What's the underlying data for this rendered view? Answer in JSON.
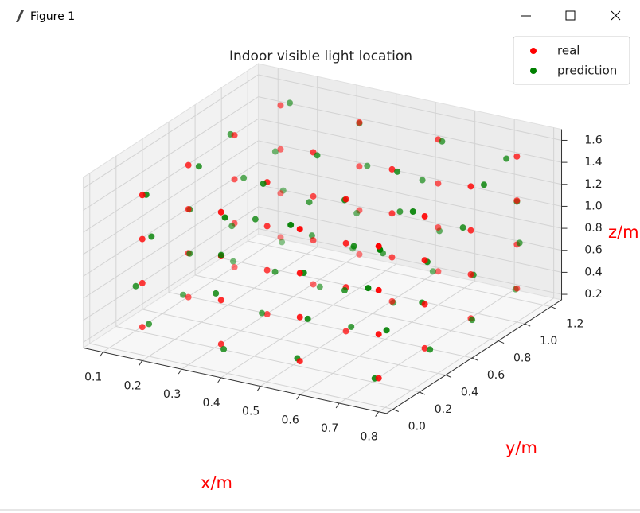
{
  "window": {
    "title": "Figure 1"
  },
  "chart_data": {
    "type": "scatter3d",
    "title": "Indoor visible light location",
    "x_label": "x/m",
    "y_label": "y/m",
    "z_label": "z/m",
    "xlim": [
      0.05,
      0.82
    ],
    "ylim": [
      -0.05,
      1.28
    ],
    "zlim": [
      0.15,
      1.7
    ],
    "xticks": [
      0.1,
      0.2,
      0.3,
      0.4,
      0.5,
      0.6,
      0.7,
      0.8
    ],
    "yticks": [
      {
        "value": 0,
        "label": "0.0"
      },
      0.2,
      0.4,
      0.6,
      0.8,
      {
        "value": 1,
        "label": "1.0"
      },
      1.2
    ],
    "zticks": [
      0.2,
      0.4,
      0.6,
      0.8,
      {
        "value": 1,
        "label": "1.0"
      },
      1.2,
      1.4,
      1.6
    ],
    "grid": true,
    "legend": "upper right",
    "series": [
      {
        "name": "real",
        "color": "#ff0000",
        "x": [
          0.15,
          0.15,
          0.15,
          0.15,
          0.15,
          0.15,
          0.15,
          0.15,
          0.15,
          0.15,
          0.15,
          0.15,
          0.15,
          0.15,
          0.15,
          0.15,
          0.35,
          0.35,
          0.35,
          0.35,
          0.35,
          0.35,
          0.35,
          0.35,
          0.35,
          0.35,
          0.35,
          0.35,
          0.35,
          0.35,
          0.35,
          0.35,
          0.55,
          0.55,
          0.55,
          0.55,
          0.55,
          0.55,
          0.55,
          0.55,
          0.55,
          0.55,
          0.55,
          0.55,
          0.55,
          0.55,
          0.55,
          0.55,
          0.75,
          0.75,
          0.75,
          0.75,
          0.75,
          0.75,
          0.75,
          0.75,
          0.75,
          0.75,
          0.75,
          0.75,
          0.75,
          0.75,
          0.75,
          0.75
        ],
        "y": [
          0.1,
          0.1,
          0.1,
          0.1,
          0.45,
          0.45,
          0.45,
          0.45,
          0.8,
          0.8,
          0.8,
          0.8,
          1.15,
          1.15,
          1.15,
          1.15,
          0.1,
          0.1,
          0.1,
          0.1,
          0.45,
          0.45,
          0.45,
          0.45,
          0.8,
          0.8,
          0.8,
          0.8,
          1.15,
          1.15,
          1.15,
          1.15,
          0.1,
          0.1,
          0.1,
          0.1,
          0.45,
          0.45,
          0.45,
          0.45,
          0.8,
          0.8,
          0.8,
          0.8,
          1.15,
          1.15,
          1.15,
          1.15,
          0.1,
          0.1,
          0.1,
          0.1,
          0.45,
          0.45,
          0.45,
          0.45,
          0.8,
          0.8,
          0.8,
          0.8,
          1.15,
          1.15,
          1.15,
          1.15
        ],
        "z": [
          0.3,
          0.7,
          1.1,
          1.5,
          0.3,
          0.7,
          1.1,
          1.5,
          0.3,
          0.7,
          1.1,
          1.5,
          0.3,
          0.7,
          1.1,
          1.5,
          0.3,
          0.7,
          1.1,
          1.5,
          0.3,
          0.7,
          1.1,
          1.5,
          0.3,
          0.7,
          1.1,
          1.5,
          0.3,
          0.7,
          1.1,
          1.5,
          0.3,
          0.7,
          1.1,
          1.5,
          0.3,
          0.7,
          1.1,
          1.5,
          0.3,
          0.7,
          1.1,
          1.5,
          0.3,
          0.7,
          1.1,
          1.5,
          0.3,
          0.7,
          1.1,
          1.5,
          0.3,
          0.7,
          1.1,
          1.5,
          0.3,
          0.7,
          1.1,
          1.5,
          0.3,
          0.7,
          1.1,
          1.5
        ]
      },
      {
        "name": "prediction",
        "color": "#008000",
        "x": [
          0.16,
          0.14,
          0.17,
          0.15,
          0.13,
          0.16,
          0.15,
          0.18,
          0.14,
          0.15,
          0.17,
          0.13,
          0.16,
          0.15,
          0.14,
          0.17,
          0.36,
          0.33,
          0.35,
          0.37,
          0.34,
          0.36,
          0.32,
          0.35,
          0.37,
          0.34,
          0.35,
          0.36,
          0.33,
          0.35,
          0.37,
          0.34,
          0.54,
          0.57,
          0.55,
          0.53,
          0.56,
          0.55,
          0.58,
          0.54,
          0.55,
          0.53,
          0.56,
          0.57,
          0.54,
          0.55,
          0.52,
          0.56,
          0.74,
          0.76,
          0.73,
          0.75,
          0.77,
          0.74,
          0.75,
          0.72,
          0.76,
          0.75,
          0.73,
          0.77,
          0.74,
          0.76,
          0.75,
          0.73
        ],
        "y": [
          0.12,
          0.08,
          0.11,
          0.13,
          0.47,
          0.43,
          0.46,
          0.44,
          0.82,
          0.78,
          0.81,
          0.83,
          1.13,
          1.17,
          1.14,
          1.16,
          0.09,
          0.12,
          0.1,
          0.07,
          0.44,
          0.48,
          0.45,
          0.42,
          0.79,
          0.82,
          0.77,
          0.8,
          1.16,
          1.13,
          1.15,
          1.18,
          0.11,
          0.1,
          0.13,
          0.09,
          0.46,
          0.44,
          0.42,
          0.47,
          0.81,
          0.79,
          0.83,
          0.78,
          1.14,
          1.16,
          1.12,
          1.15,
          0.1,
          0.13,
          0.08,
          0.11,
          0.43,
          0.46,
          0.47,
          0.45,
          0.78,
          0.82,
          0.8,
          0.84,
          1.17,
          1.14,
          1.15,
          1.13
        ],
        "z": [
          0.32,
          0.68,
          1.13,
          1.48,
          0.29,
          0.72,
          1.09,
          1.52,
          0.33,
          0.69,
          1.12,
          1.47,
          0.28,
          0.71,
          1.08,
          1.53,
          0.27,
          0.73,
          1.11,
          1.49,
          0.31,
          0.67,
          1.14,
          1.51,
          0.3,
          0.72,
          1.07,
          1.48,
          0.33,
          0.69,
          1.12,
          1.46,
          0.31,
          0.7,
          1.08,
          1.53,
          0.34,
          0.68,
          1.12,
          1.47,
          0.28,
          0.73,
          1.1,
          1.51,
          0.3,
          0.66,
          1.13,
          1.49,
          0.29,
          0.72,
          1.12,
          1.46,
          0.32,
          0.7,
          1.07,
          1.52,
          0.31,
          0.68,
          1.11,
          1.5,
          0.27,
          0.73,
          1.09,
          1.48
        ]
      }
    ]
  }
}
